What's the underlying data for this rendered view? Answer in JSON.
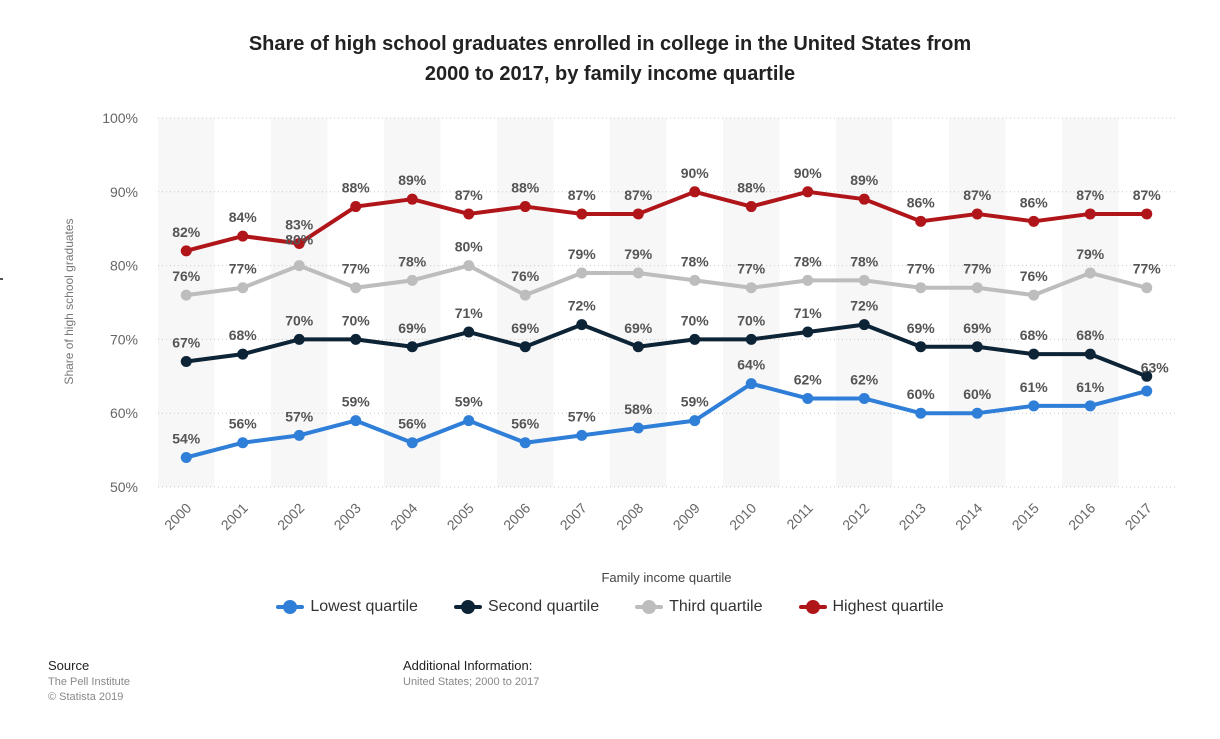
{
  "page": {
    "source_heading": "Source",
    "source_lines": [
      "The Pell Institute",
      "© Statista 2019"
    ],
    "additional_heading": "Additional Information:",
    "additional_text": "United States; 2000 to 2017"
  },
  "chart_data": {
    "type": "line",
    "title_lines": [
      "Share of high school graduates enrolled in college in the United States from",
      "2000 to 2017, by family income quartile"
    ],
    "xlabel": "Family income quartile",
    "ylabel": "Share of high school graduates",
    "ylim": [
      50,
      100
    ],
    "yticks": [
      "50%",
      "60%",
      "70%",
      "80%",
      "90%",
      "100%"
    ],
    "categories": [
      "2000",
      "2001",
      "2002",
      "2003",
      "2004",
      "2005",
      "2006",
      "2007",
      "2008",
      "2009",
      "2010",
      "2011",
      "2012",
      "2013",
      "2014",
      "2015",
      "2016",
      "2017"
    ],
    "legend_position": "bottom",
    "grid": true,
    "series": [
      {
        "name": "Lowest quartile",
        "color": "#2f7ed8",
        "values": [
          54,
          56,
          57,
          59,
          56,
          59,
          56,
          57,
          58,
          59,
          64,
          62,
          62,
          60,
          60,
          61,
          61,
          63
        ],
        "labels": [
          "54%",
          "56%",
          "57%",
          "59%",
          "56%",
          "59%",
          "56%",
          "57%",
          "58%",
          "59%",
          "64%",
          "62%",
          "62%",
          "60%",
          "60%",
          "61%",
          "61%",
          "63%"
        ]
      },
      {
        "name": "Second quartile",
        "color": "#0d2336",
        "values": [
          67,
          68,
          70,
          70,
          69,
          71,
          69,
          72,
          69,
          70,
          70,
          71,
          72,
          69,
          69,
          68,
          68,
          65
        ],
        "labels": [
          "67%",
          "68%",
          "70%",
          "70%",
          "69%",
          "71%",
          "69%",
          "72%",
          "69%",
          "70%",
          "70%",
          "71%",
          "72%",
          "69%",
          "69%",
          "68%",
          "68%",
          ""
        ]
      },
      {
        "name": "Third quartile",
        "color": "#bdbdbd",
        "values": [
          76,
          77,
          80,
          77,
          78,
          80,
          76,
          79,
          79,
          78,
          77,
          78,
          78,
          77,
          77,
          76,
          79,
          77
        ],
        "labels": [
          "76%",
          "77%",
          "80%",
          "77%",
          "78%",
          "80%",
          "76%",
          "79%",
          "79%",
          "78%",
          "77%",
          "78%",
          "78%",
          "77%",
          "77%",
          "76%",
          "79%",
          "77%"
        ]
      },
      {
        "name": "Highest quartile",
        "color": "#b0151a",
        "values": [
          82,
          84,
          83,
          88,
          89,
          87,
          88,
          87,
          87,
          90,
          88,
          90,
          89,
          86,
          87,
          86,
          87,
          87
        ],
        "labels": [
          "82%",
          "84%",
          "83%",
          "88%",
          "89%",
          "87%",
          "88%",
          "87%",
          "87%",
          "90%",
          "88%",
          "90%",
          "89%",
          "86%",
          "87%",
          "86%",
          "87%",
          "87%"
        ]
      }
    ]
  }
}
